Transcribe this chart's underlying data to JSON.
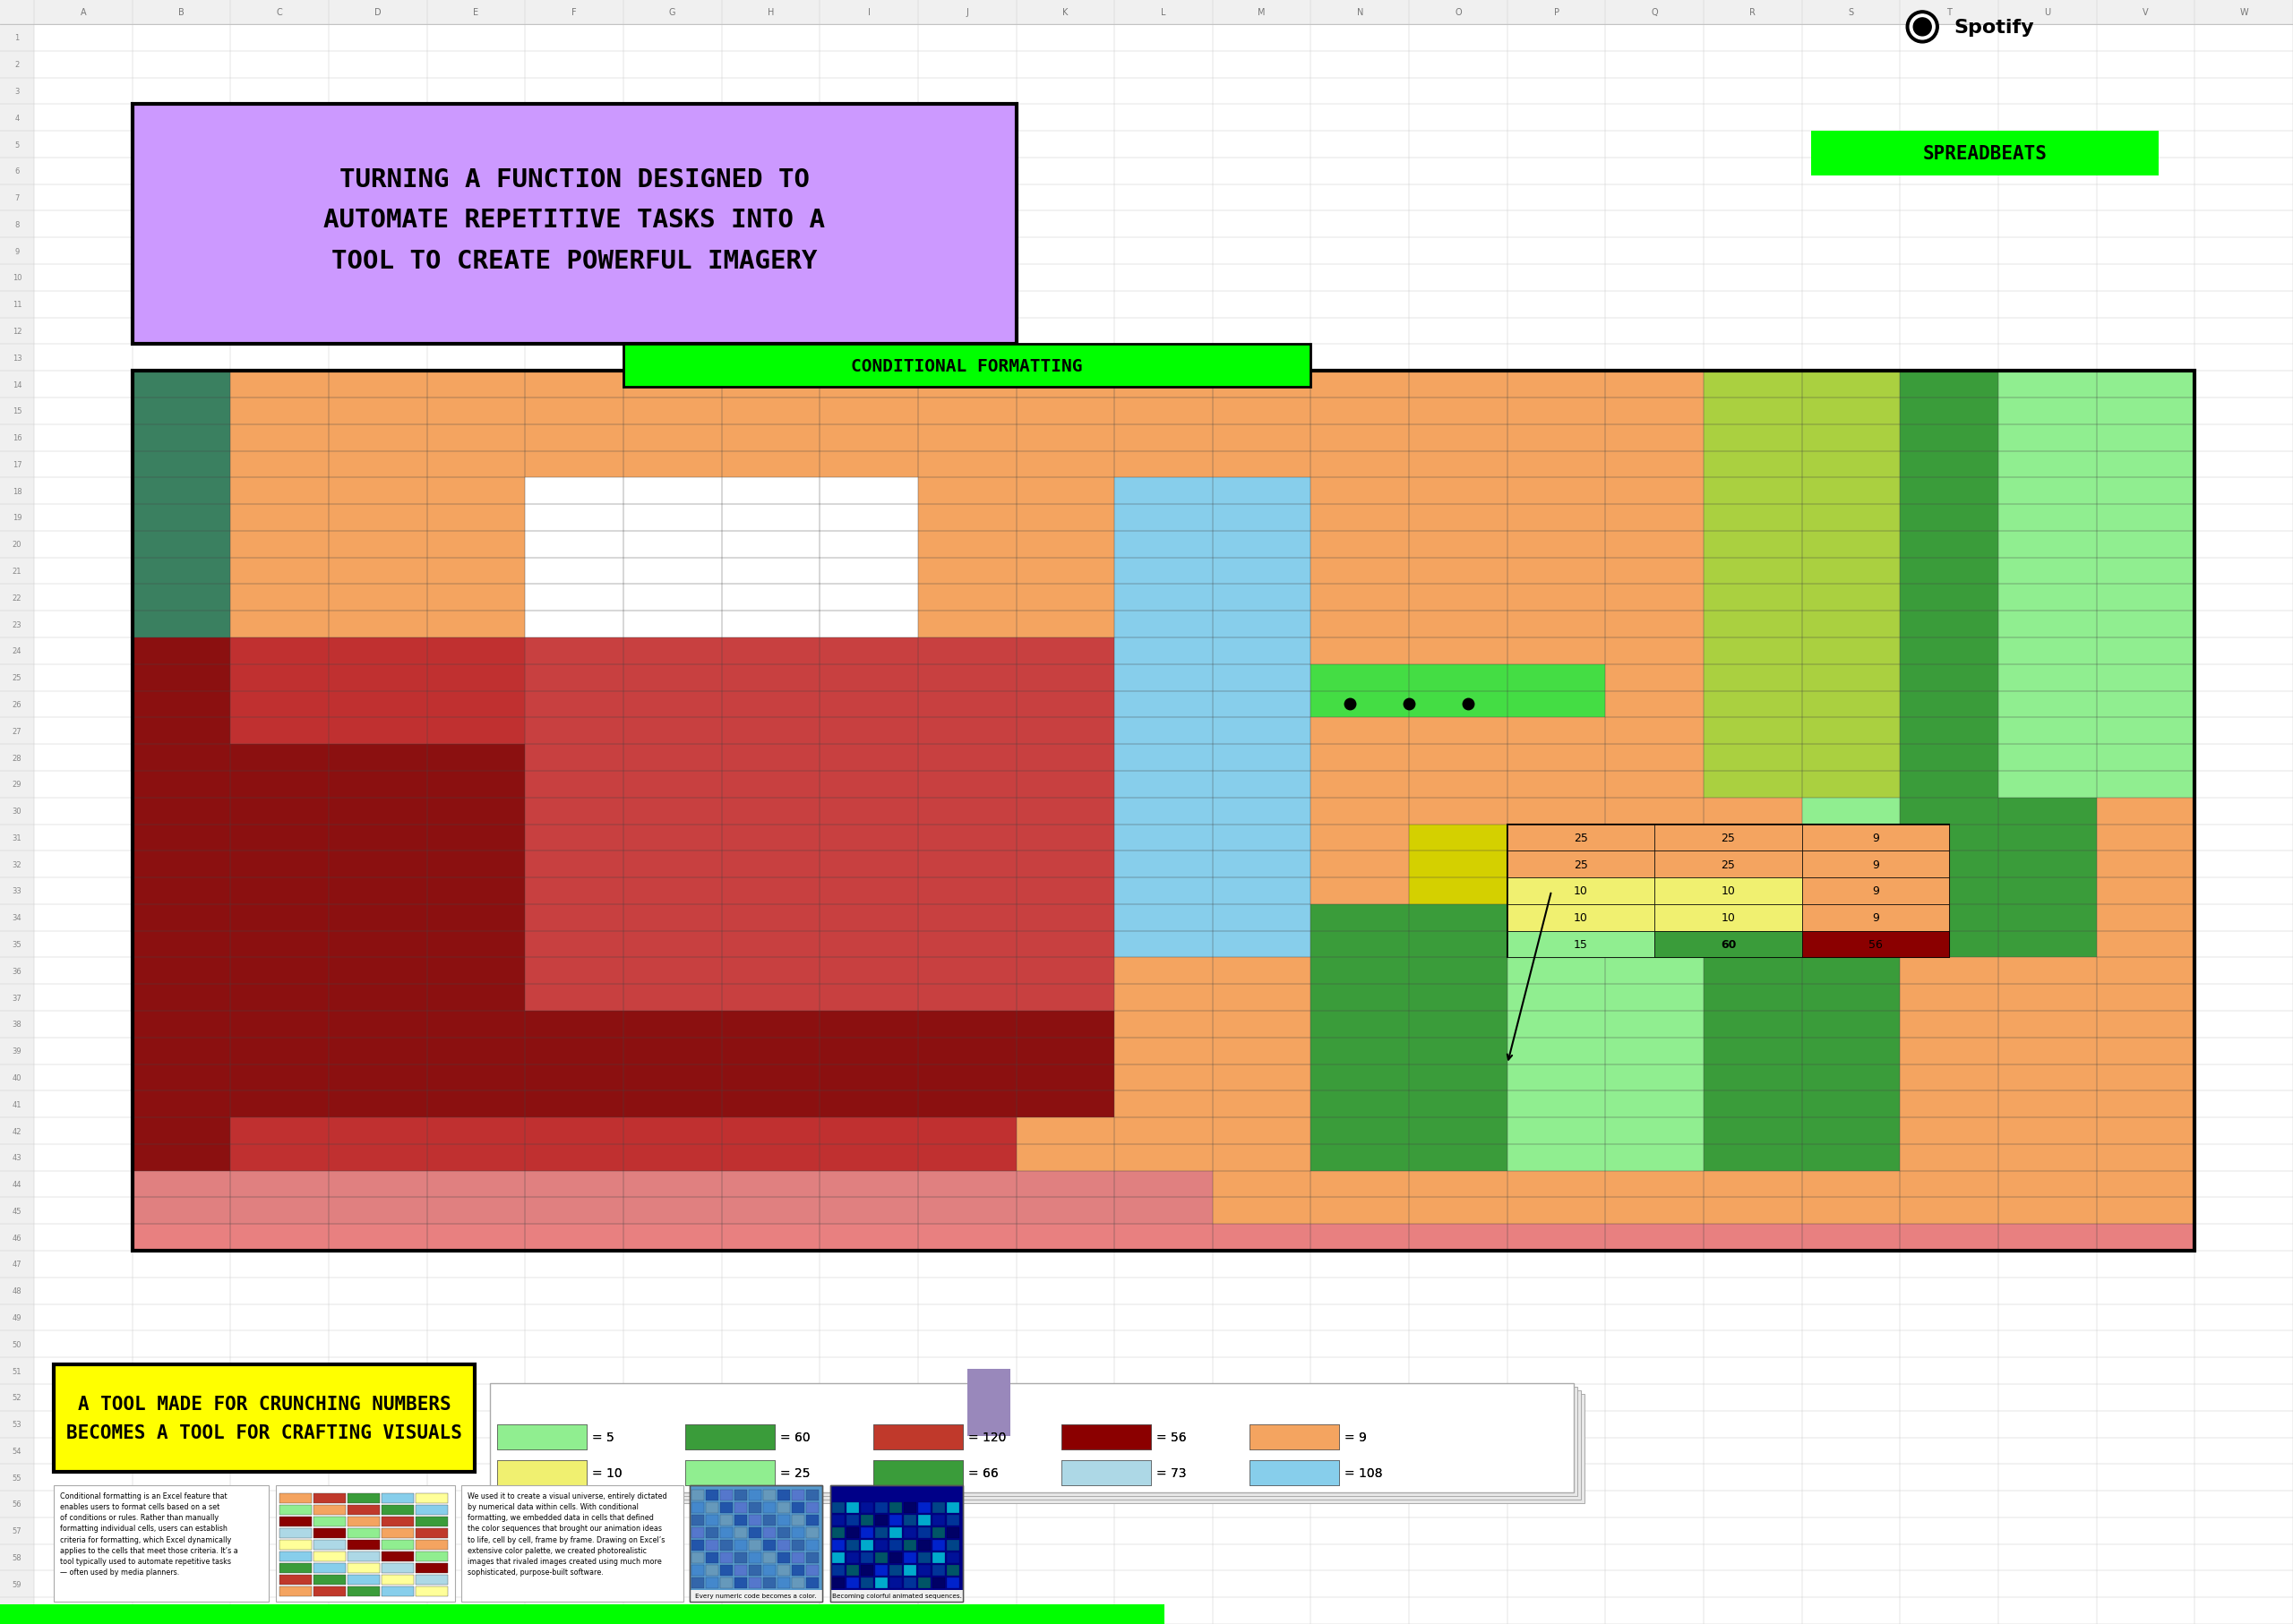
{
  "title_text": "TURNING A FUNCTION DESIGNED TO\nAUTOMATE REPETITIVE TASKS INTO A\nTOOL TO CREATE POWERFUL IMAGERY",
  "subtitle_text": "CONDITIONAL FORMATTING",
  "spotify_text": "●  Spotify®",
  "spreadbeats_text": "SPREADBEATS",
  "bottom_title": "A TOOL MADE FOR CRUNCHING NUMBERS\nBECOMES A TOOL FOR CRAFTING VISUALS",
  "bg_color": "#f0f0ee",
  "title_bg": "#cc99ff",
  "subtitle_bg": "#00ff00",
  "spreadbeats_bg": "#00ff00",
  "bottom_title_bg": "#ffff00",
  "col_labels": [
    "A",
    "B",
    "C",
    "D",
    "E",
    "F",
    "G",
    "H",
    "I",
    "J",
    "K",
    "L",
    "M",
    "N",
    "O",
    "P",
    "Q",
    "R",
    "S",
    "T",
    "U",
    "V",
    "W"
  ],
  "legend_items": [
    {
      "value": "= 5",
      "color": "#90ee90"
    },
    {
      "value": "= 60",
      "color": "#3a9c3a"
    },
    {
      "value": "= 120",
      "color": "#c0392b"
    },
    {
      "value": "= 56",
      "color": "#8B0000"
    },
    {
      "value": "= 9",
      "color": "#f4a460"
    },
    {
      "value": "= 10",
      "color": "#f0f070"
    },
    {
      "value": "= 25",
      "color": "#90ee90"
    },
    {
      "value": "= 66",
      "color": "#3a9c3a"
    },
    {
      "value": "= 73",
      "color": "#add8e6"
    },
    {
      "value": "= 108",
      "color": "#87ceeb"
    }
  ],
  "callout_values": [
    [
      25,
      25,
      9
    ],
    [
      25,
      25,
      9
    ],
    [
      10,
      10,
      9
    ],
    [
      10,
      10,
      9
    ],
    [
      15,
      60,
      56
    ]
  ],
  "callout_colors": [
    [
      "#f4a460",
      "#f4a460",
      "#f4a460"
    ],
    [
      "#f4a460",
      "#f4a460",
      "#f4a460"
    ],
    [
      "#f0f070",
      "#f0f070",
      "#f4a460"
    ],
    [
      "#f0f070",
      "#f0f070",
      "#f4a460"
    ],
    [
      "#90ee90",
      "#3a9c3a",
      "#8B0000"
    ]
  ],
  "desc_text": "Conditional formatting is an Excel feature that\nenables users to format cells based on a set\nof conditions or rules. Rather than manually\nformatting individual cells, users can establish\ncriteria for formatting, which Excel dynamically\napplies to the cells that meet those criteria. It’s a\ntool typically used to automate repetitive tasks\n— often used by media planners.",
  "desc2_text": "We used it to create a visual universe, entirely dictated\nby numerical data within cells. With conditional\nformatting, we embedded data in cells that defined\nthe color sequences that brought our animation ideas\nto life, cell by cell, frame by frame. Drawing on Excel’s\nextensive color palette, we created photorealistic\nimages that rivaled images created using much more\nsophisticated, purpose-built software.",
  "img1_caption": "Every numeric code becomes a color.",
  "img2_caption": "Becoming colorful animated sequences."
}
